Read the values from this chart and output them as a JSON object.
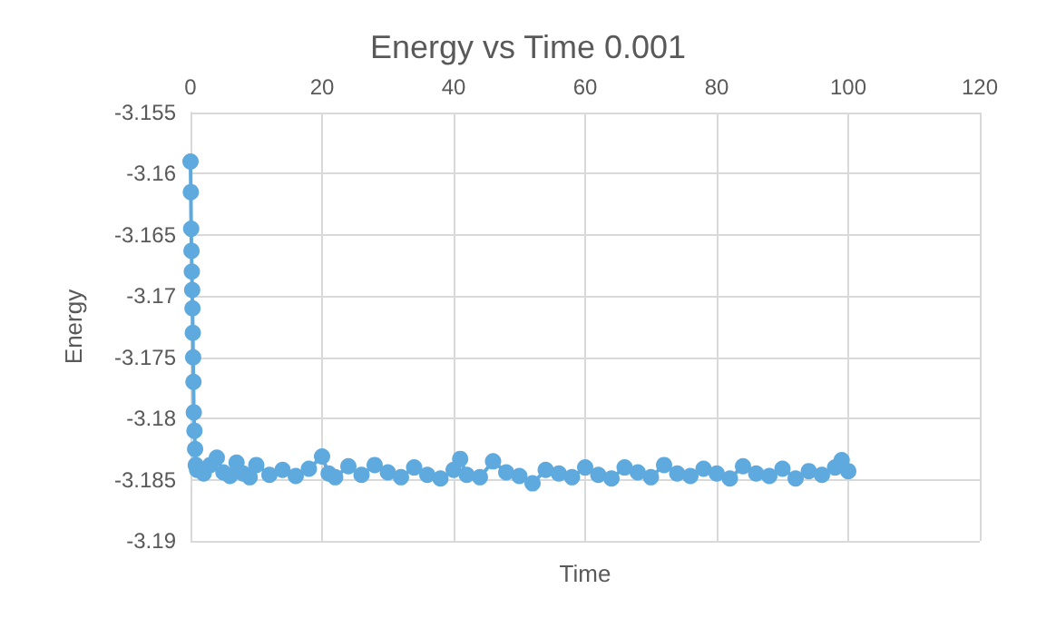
{
  "chart_data": {
    "type": "line",
    "title": "Energy vs Time 0.001",
    "xlabel": "Time",
    "ylabel": "Energy",
    "x": [
      0,
      0.05,
      0.1,
      0.15,
      0.2,
      0.25,
      0.3,
      0.35,
      0.4,
      0.45,
      0.5,
      0.6,
      0.7,
      0.8,
      1,
      2,
      3,
      4,
      5,
      6,
      7,
      8,
      9,
      10,
      12,
      14,
      16,
      18,
      20,
      21,
      22,
      24,
      26,
      28,
      30,
      32,
      34,
      36,
      38,
      40,
      41,
      42,
      44,
      46,
      48,
      50,
      52,
      54,
      56,
      58,
      60,
      62,
      64,
      66,
      68,
      70,
      72,
      74,
      76,
      78,
      80,
      82,
      84,
      86,
      88,
      90,
      92,
      94,
      96,
      98,
      99,
      100
    ],
    "series": [
      {
        "color": "#5ea9dd",
        "values": [
          -3.159,
          -3.1615,
          -3.1645,
          -3.1663,
          -3.168,
          -3.1695,
          -3.171,
          -3.173,
          -3.175,
          -3.177,
          -3.1795,
          -3.181,
          -3.1825,
          -3.1838,
          -3.1842,
          -3.1845,
          -3.1838,
          -3.1832,
          -3.1844,
          -3.1847,
          -3.1836,
          -3.1845,
          -3.1848,
          -3.1838,
          -3.1846,
          -3.1842,
          -3.1847,
          -3.1841,
          -3.1831,
          -3.1845,
          -3.1848,
          -3.1839,
          -3.1846,
          -3.1838,
          -3.1844,
          -3.1848,
          -3.184,
          -3.1846,
          -3.1849,
          -3.1842,
          -3.1833,
          -3.1846,
          -3.1848,
          -3.1835,
          -3.1844,
          -3.1847,
          -3.1853,
          -3.1842,
          -3.1845,
          -3.1848,
          -3.184,
          -3.1846,
          -3.1849,
          -3.184,
          -3.1844,
          -3.1848,
          -3.1838,
          -3.1845,
          -3.1847,
          -3.1841,
          -3.1845,
          -3.1849,
          -3.1839,
          -3.1845,
          -3.1847,
          -3.1841,
          -3.1849,
          -3.1843,
          -3.1846,
          -3.184,
          -3.1834,
          -3.1843
        ]
      }
    ],
    "xlim": [
      0,
      120
    ],
    "xticks": [
      0,
      20,
      40,
      60,
      80,
      100,
      120
    ],
    "ylim": [
      -3.19,
      -3.155
    ],
    "yticks": [
      -3.19,
      -3.185,
      -3.18,
      -3.175,
      -3.17,
      -3.165,
      -3.16,
      -3.155
    ],
    "grid": true,
    "marker": "circle",
    "line_style": "solid"
  }
}
